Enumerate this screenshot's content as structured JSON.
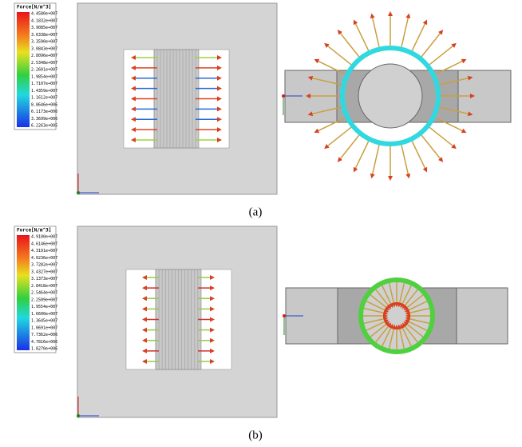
{
  "panels": [
    {
      "legend_title": "Force[N/m^3]",
      "legend_labels": [
        "4.4580e+007",
        "4.1832e+007",
        "3.9085e+007",
        "3.6338e+007",
        "3.3590e+007",
        "3.0843e+007",
        "2.8096e+007",
        "2.5348e+007",
        "2.2601e+007",
        "1.9854e+007",
        "1.7107e+007",
        "1.4359e+007",
        "1.1612e+007",
        "8.8646e+006",
        "6.1173e+006",
        "3.3699e+006",
        "6.2263e+005"
      ],
      "caption": "(a)"
    },
    {
      "legend_title": "Force[N/m^3]",
      "legend_labels": [
        "4.9100e+007",
        "4.6146e+007",
        "4.3191e+007",
        "4.0236e+007",
        "3.7282e+007",
        "3.4327e+007",
        "3.1373e+007",
        "2.8418e+007",
        "2.5464e+007",
        "2.2509e+007",
        "1.9554e+007",
        "1.6600e+007",
        "1.3645e+007",
        "1.0691e+007",
        "7.7362e+006",
        "4.7816e+006",
        "1.8270e+006"
      ],
      "caption": "(b)"
    }
  ]
}
